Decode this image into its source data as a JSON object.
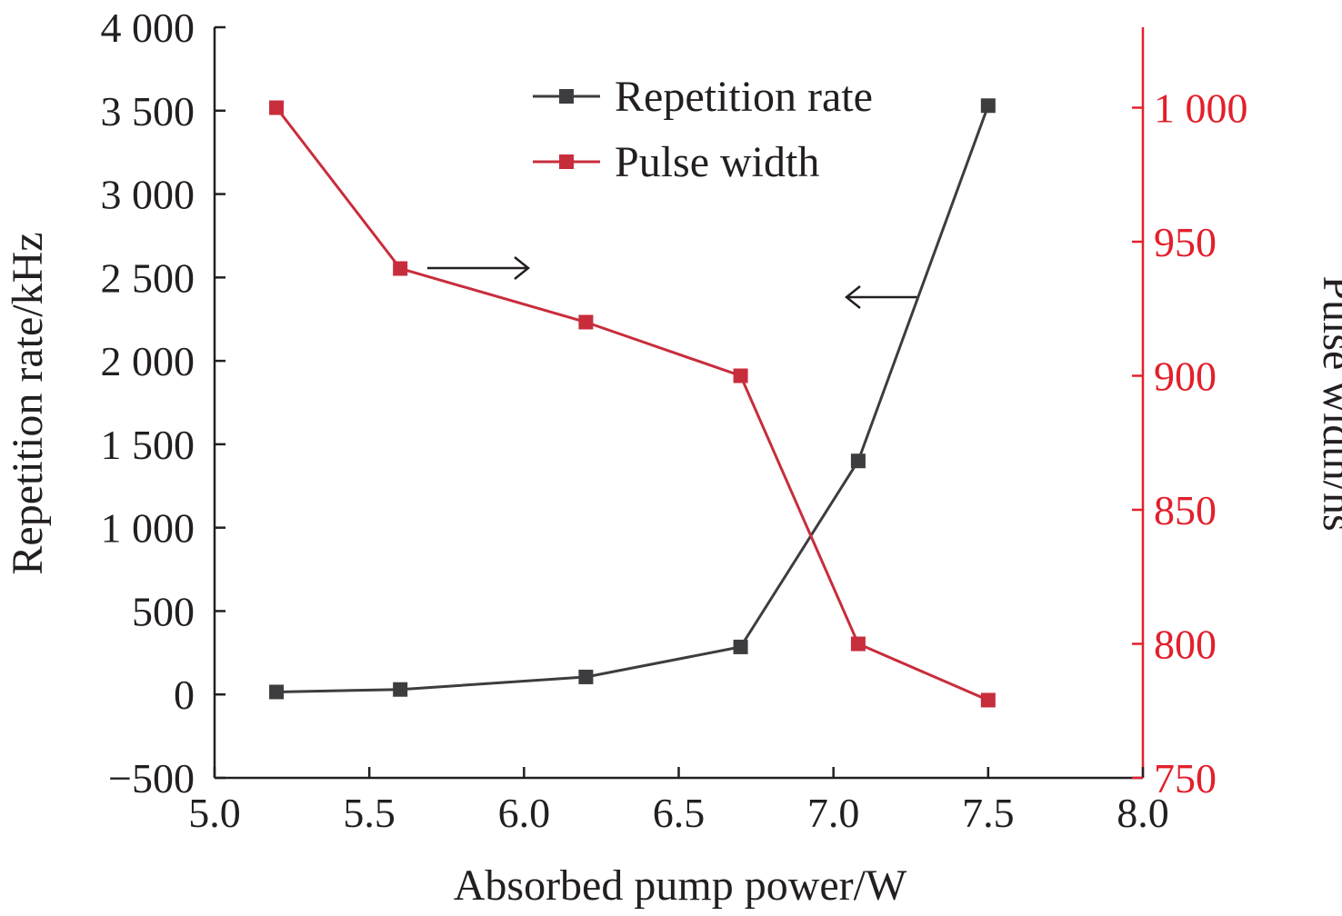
{
  "chart_data": {
    "type": "line",
    "xlabel": "Absorbed pump power/W",
    "ylabel_left": "Repetition rate/kHz",
    "ylabel_right": "Pulse width/ns",
    "xlim": [
      5.0,
      8.0
    ],
    "ylim_left": [
      -500,
      4000
    ],
    "ylim_right": [
      750,
      1030
    ],
    "x_ticks": [
      "5.0",
      "5.5",
      "6.0",
      "6.5",
      "7.0",
      "7.5",
      "8.0"
    ],
    "x_tick_values": [
      5.0,
      5.5,
      6.0,
      6.5,
      7.0,
      7.5,
      8.0
    ],
    "y_left_ticks": [
      "−500",
      "0",
      "500",
      "1 000",
      "1 500",
      "2 000",
      "2 500",
      "3 000",
      "3 500",
      "4 000"
    ],
    "y_left_tick_values": [
      -500,
      0,
      500,
      1000,
      1500,
      2000,
      2500,
      3000,
      3500,
      4000
    ],
    "y_right_ticks": [
      "750",
      "800",
      "850",
      "900",
      "950",
      "1 000"
    ],
    "y_right_tick_values": [
      750,
      800,
      850,
      900,
      950,
      1000
    ],
    "grid": false,
    "legend_position": "top-center",
    "series": [
      {
        "name": "Repetition rate",
        "axis": "left",
        "color": "#3d3d3f",
        "marker": "square",
        "x": [
          5.2,
          5.6,
          6.2,
          6.7,
          7.08,
          7.5
        ],
        "values": [
          15,
          30,
          105,
          285,
          1400,
          3530
        ]
      },
      {
        "name": "Pulse width",
        "axis": "right",
        "color": "#c82d3c",
        "marker": "square",
        "x": [
          5.2,
          5.6,
          6.2,
          6.7,
          7.08,
          7.5
        ],
        "values": [
          1000,
          940,
          920,
          900,
          800,
          779
        ]
      }
    ],
    "annotations": [
      {
        "type": "arrow",
        "direction": "right",
        "points_to_axis": "right"
      },
      {
        "type": "arrow",
        "direction": "left",
        "points_to_axis": "left"
      }
    ],
    "colors": {
      "left_axis": "#231f20",
      "right_axis": "#e2202c"
    }
  }
}
